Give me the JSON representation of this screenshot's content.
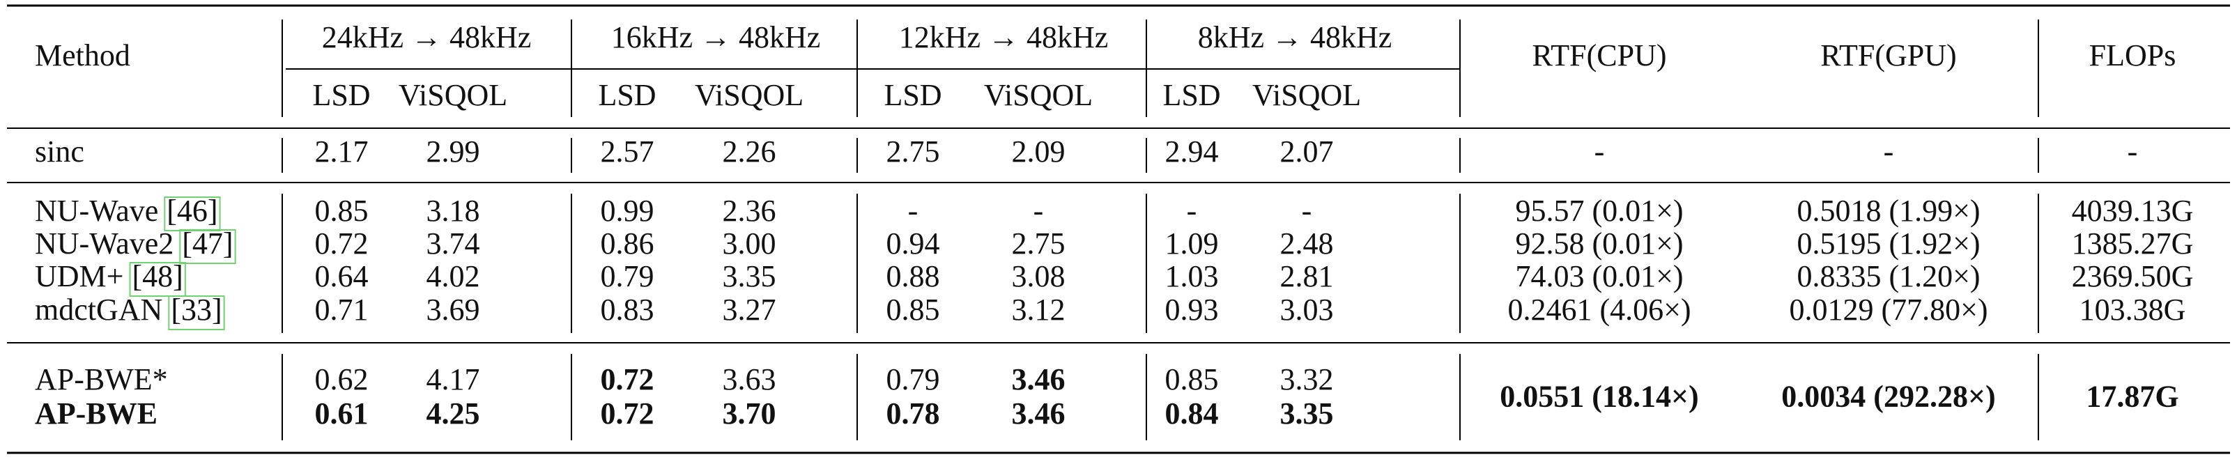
{
  "table": {
    "header": {
      "method": "Method",
      "groups": [
        "24kHz → 48kHz",
        "16kHz → 48kHz",
        "12kHz → 48kHz",
        "8kHz → 48kHz"
      ],
      "metrics": [
        "LSD",
        "ViSQOL"
      ],
      "costs": [
        "RTF(CPU)",
        "RTF(GPU)",
        "FLOPs"
      ]
    },
    "sections": [
      {
        "rows": [
          {
            "method": "sinc",
            "scores": [
              "2.17",
              "2.99",
              "2.57",
              "2.26",
              "2.75",
              "2.09",
              "2.94",
              "2.07"
            ],
            "costs": [
              "-",
              "-",
              "-"
            ]
          }
        ]
      },
      {
        "rows": [
          {
            "method": "NU-Wave",
            "ref": "[46]",
            "scores": [
              "0.85",
              "3.18",
              "0.99",
              "2.36",
              "-",
              "-",
              "-",
              "-"
            ],
            "costs": [
              "95.57 (0.01×)",
              "0.5018 (1.99×)",
              "4039.13G"
            ]
          },
          {
            "method": "NU-Wave2",
            "ref": "[47]",
            "scores": [
              "0.72",
              "3.74",
              "0.86",
              "3.00",
              "0.94",
              "2.75",
              "1.09",
              "2.48"
            ],
            "costs": [
              "92.58 (0.01×)",
              "0.5195 (1.92×)",
              "1385.27G"
            ]
          },
          {
            "method": "UDM+",
            "ref": "[48]",
            "scores": [
              "0.64",
              "4.02",
              "0.79",
              "3.35",
              "0.88",
              "3.08",
              "1.03",
              "2.81"
            ],
            "costs": [
              "74.03 (0.01×)",
              "0.8335 (1.20×)",
              "2369.50G"
            ]
          },
          {
            "method": "mdctGAN",
            "ref": "[33]",
            "scores": [
              "0.71",
              "3.69",
              "0.83",
              "3.27",
              "0.85",
              "3.12",
              "0.93",
              "3.03"
            ],
            "costs": [
              "0.2461 (4.06×)",
              "0.0129 (77.80×)",
              "103.38G"
            ]
          }
        ]
      },
      {
        "rows": [
          {
            "method": "AP-BWE*",
            "scores": [
              "0.62",
              "4.17",
              "0.72",
              "3.63",
              "0.79",
              "3.46",
              "0.85",
              "3.32"
            ]
          },
          {
            "method": "AP-BWE",
            "scores": [
              "0.61",
              "4.25",
              "0.72",
              "3.70",
              "0.78",
              "3.46",
              "0.84",
              "3.35"
            ]
          }
        ],
        "costs": [
          "0.0551 (18.14×)",
          "0.0034 (292.28×)",
          "17.87G"
        ]
      }
    ]
  }
}
